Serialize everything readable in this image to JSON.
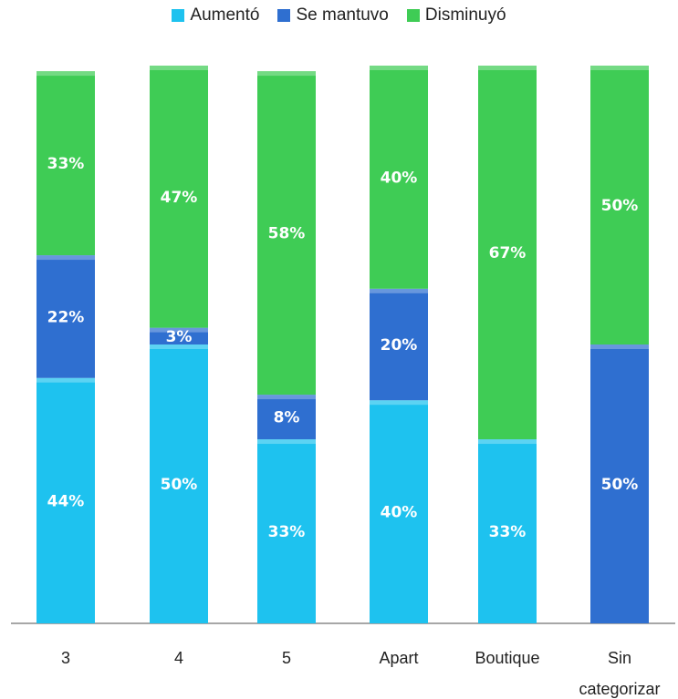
{
  "chart_data": {
    "type": "bar",
    "stacked": true,
    "percent": true,
    "categories": [
      "3",
      "4",
      "5",
      "Apart",
      "Boutique",
      "Sin categorizar"
    ],
    "series": [
      {
        "name": "Aumentó",
        "color": "#1ec2ef",
        "values": [
          44,
          50,
          33,
          40,
          33,
          0
        ]
      },
      {
        "name": "Se mantuvo",
        "color": "#2f6fd0",
        "values": [
          22,
          3,
          8,
          20,
          0,
          50
        ]
      },
      {
        "name": "Disminuyó",
        "color": "#3fcc55",
        "values": [
          33,
          47,
          58,
          40,
          67,
          50
        ]
      }
    ],
    "value_suffix": "%",
    "ylim": [
      0,
      100
    ],
    "legend_position": "top-center",
    "grid": false
  }
}
